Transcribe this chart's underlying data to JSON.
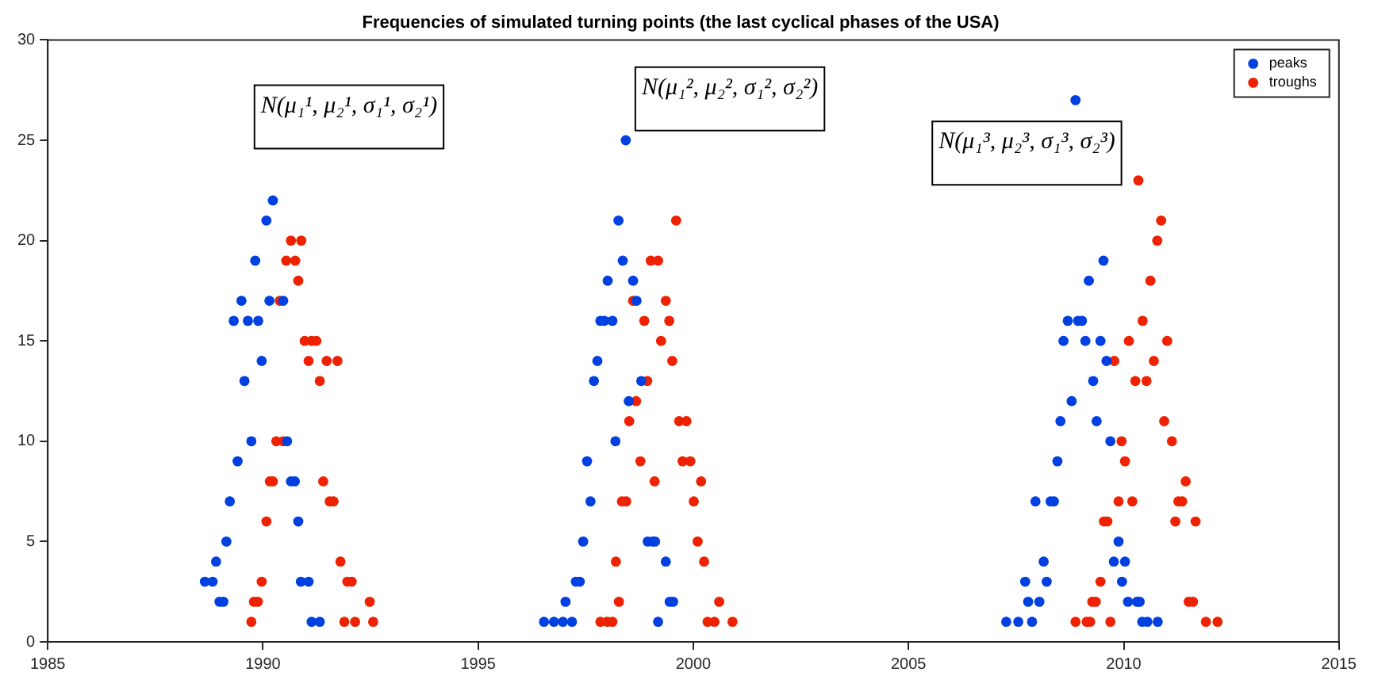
{
  "chart_data": {
    "type": "scatter",
    "title": "Frequencies of simulated turning points (the last cyclical phases of the USA)",
    "xlim": [
      1985,
      2015
    ],
    "xticks": [
      1985,
      1990,
      1995,
      2000,
      2005,
      2010,
      2015
    ],
    "ylim": [
      0,
      30
    ],
    "yticks": [
      0,
      5,
      10,
      15,
      20,
      25,
      30
    ],
    "grid": false,
    "legend": "top right",
    "marker": "circle",
    "annotations": [
      "N(μ₁¹, μ₂¹, σ₁¹, σ₂¹)",
      "N(μ₁², μ₂², σ₁², σ₂²)",
      "N(μ₁³, μ₂³, σ₁³, σ₂³)"
    ],
    "series": [
      {
        "name": "peaks",
        "color": "#0040e0",
        "x": [
          1990.23,
          1990.08,
          1989.82,
          1989.5,
          1990.15,
          1990.47,
          1989.32,
          1989.65,
          1989.89,
          1989.97,
          1989.57,
          1989.73,
          1990.56,
          1989.41,
          1990.65,
          1990.74,
          1989.23,
          1990.82,
          1989.15,
          1988.91,
          1988.65,
          1988.83,
          1990.88,
          1991.06,
          1988.99,
          1989.08,
          1991.13,
          1991.32,
          1998.43,
          1998.26,
          1998.36,
          1998.01,
          1998.6,
          1998.68,
          1997.84,
          1997.93,
          1998.12,
          1997.77,
          1997.69,
          1998.79,
          1998.5,
          1998.19,
          1997.53,
          1997.61,
          1997.44,
          1998.94,
          1999.05,
          1999.11,
          1999.36,
          1997.27,
          1997.36,
          1997.03,
          1999.45,
          1999.53,
          1996.53,
          1996.76,
          1996.97,
          1997.18,
          1999.18,
          2008.88,
          2009.53,
          2009.19,
          2008.7,
          2008.94,
          2009.03,
          2008.6,
          2009.11,
          2009.46,
          2009.6,
          2009.29,
          2008.79,
          2008.53,
          2009.37,
          2009.69,
          2008.46,
          2007.95,
          2008.3,
          2008.38,
          2009.88,
          2008.14,
          2009.77,
          2010.03,
          2007.71,
          2008.21,
          2009.96,
          2007.78,
          2008.04,
          2010.1,
          2010.31,
          2010.37,
          2007.27,
          2007.55,
          2007.87,
          2010.43,
          2010.55,
          2010.79
        ],
        "values": [
          22,
          21,
          19,
          17,
          17,
          17,
          16,
          16,
          16,
          14,
          13,
          10,
          10,
          9,
          8,
          8,
          7,
          6,
          5,
          4,
          3,
          3,
          3,
          3,
          2,
          2,
          1,
          1,
          25,
          21,
          19,
          18,
          18,
          17,
          16,
          16,
          16,
          14,
          13,
          13,
          12,
          10,
          9,
          7,
          5,
          5,
          5,
          5,
          4,
          3,
          3,
          2,
          2,
          2,
          1,
          1,
          1,
          1,
          1,
          27,
          19,
          18,
          16,
          16,
          16,
          15,
          15,
          15,
          14,
          13,
          12,
          11,
          11,
          10,
          9,
          7,
          7,
          7,
          5,
          4,
          4,
          4,
          3,
          3,
          3,
          2,
          2,
          2,
          2,
          2,
          1,
          1,
          1,
          1,
          1,
          1
        ]
      },
      {
        "name": "troughs",
        "color": "#ee2200",
        "x": [
          1990.65,
          1990.89,
          1990.54,
          1990.75,
          1990.82,
          1990.39,
          1990.97,
          1991.13,
          1991.24,
          1991.06,
          1991.48,
          1991.73,
          1991.32,
          1990.31,
          1990.47,
          1990.16,
          1990.23,
          1991.4,
          1991.55,
          1991.64,
          1990.08,
          1991.8,
          1989.97,
          1991.96,
          1992.06,
          1989.79,
          1989.88,
          1992.48,
          1989.73,
          1991.89,
          1992.14,
          1992.56,
          1999.6,
          1999.01,
          1999.18,
          1998.6,
          1999.36,
          1998.86,
          1999.44,
          1999.25,
          1999.51,
          1998.93,
          1998.67,
          1998.51,
          1999.67,
          1999.84,
          1998.77,
          1999.75,
          1999.93,
          1999.1,
          2000.18,
          1998.34,
          1998.44,
          2000.01,
          2000.1,
          1998.2,
          2000.25,
          1998.27,
          2000.6,
          1997.84,
          1998.0,
          1998.12,
          2000.33,
          2000.49,
          2000.91,
          2010.34,
          2010.87,
          2010.78,
          2010.62,
          2010.44,
          2010.12,
          2011.01,
          2009.78,
          2010.7,
          2010.27,
          2010.53,
          2010.94,
          2009.95,
          2011.12,
          2010.03,
          2011.44,
          2009.88,
          2010.2,
          2011.27,
          2011.36,
          2009.54,
          2009.62,
          2011.2,
          2011.67,
          2009.46,
          2009.27,
          2009.35,
          2011.51,
          2011.61,
          2008.88,
          2009.14,
          2009.22,
          2009.69,
          2011.91,
          2012.18
        ],
        "values": [
          20,
          20,
          19,
          19,
          18,
          17,
          15,
          15,
          15,
          14,
          14,
          14,
          13,
          10,
          10,
          8,
          8,
          8,
          7,
          7,
          6,
          4,
          3,
          3,
          3,
          2,
          2,
          2,
          1,
          1,
          1,
          1,
          21,
          19,
          19,
          17,
          17,
          16,
          16,
          15,
          14,
          13,
          12,
          11,
          11,
          11,
          9,
          9,
          9,
          8,
          8,
          7,
          7,
          7,
          5,
          4,
          4,
          2,
          2,
          1,
          1,
          1,
          1,
          1,
          1,
          23,
          21,
          20,
          18,
          16,
          15,
          15,
          14,
          14,
          13,
          13,
          11,
          10,
          10,
          9,
          8,
          7,
          7,
          7,
          7,
          6,
          6,
          6,
          6,
          3,
          2,
          2,
          2,
          2,
          1,
          1,
          1,
          1,
          1,
          1
        ]
      }
    ]
  }
}
